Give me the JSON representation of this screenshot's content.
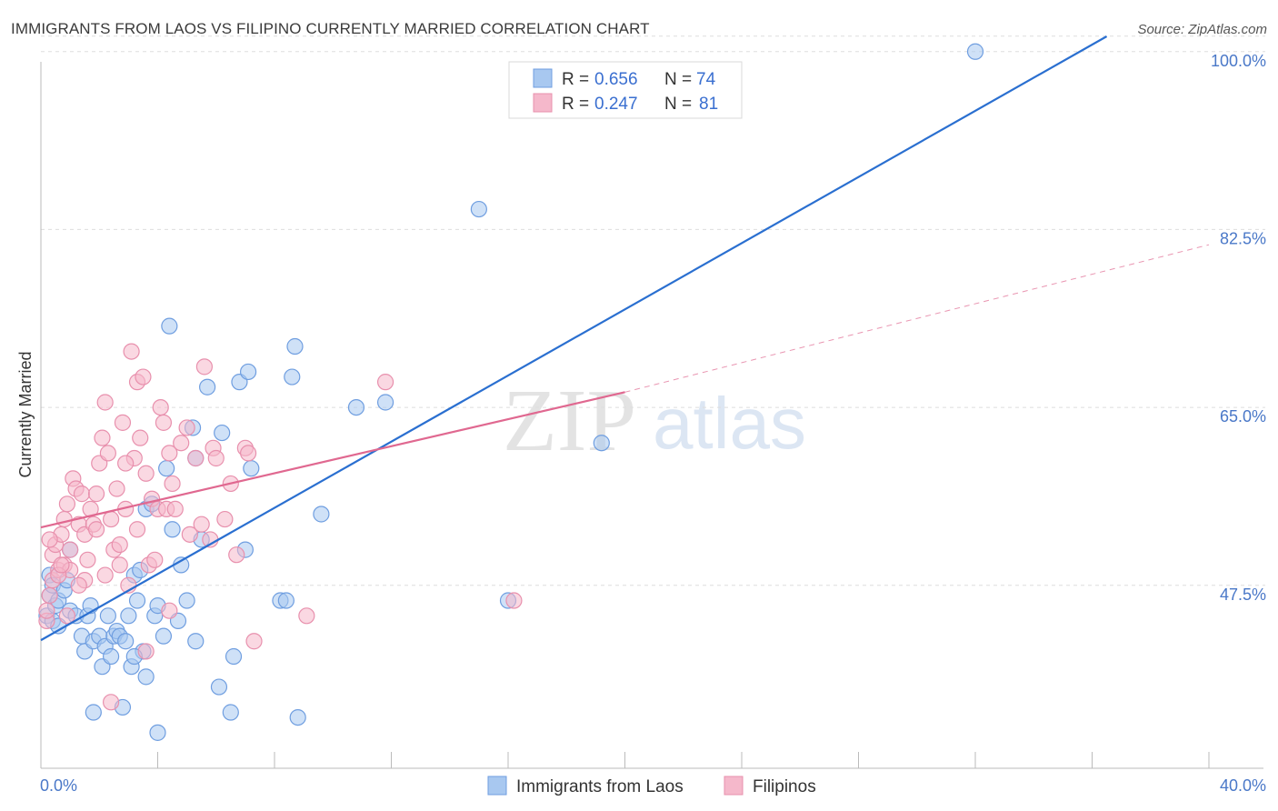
{
  "header": {
    "title": "IMMIGRANTS FROM LAOS VS FILIPINO CURRENTLY MARRIED CORRELATION CHART",
    "source": "Source: ZipAtlas.com"
  },
  "watermark": {
    "zip": "ZIP",
    "atlas": "atlas"
  },
  "colors": {
    "blue_fill": "#a8c8f0",
    "blue_stroke": "#6f9ee0",
    "blue_line": "#2a6fd0",
    "pink_fill": "#f5b8cb",
    "pink_stroke": "#e890ad",
    "pink_line": "#e06890",
    "grid": "#dddddd"
  },
  "legend": {
    "rows": [
      {
        "r_label": "R =",
        "r_value": "0.656",
        "n_label": "N =",
        "n_value": "74"
      },
      {
        "r_label": "R =",
        "r_value": "0.247",
        "n_label": "N =",
        "n_value": "81"
      }
    ]
  },
  "chart_data": {
    "type": "scatter",
    "title": "IMMIGRANTS FROM LAOS VS FILIPINO CURRENTLY MARRIED CORRELATION CHART",
    "xlabel": "",
    "ylabel": "Currently Married",
    "xlim": [
      0,
      40
    ],
    "ylim": [
      29.5,
      101.5
    ],
    "x_tick_labels": [
      "0.0%",
      "40.0%"
    ],
    "y_ticks": [
      47.5,
      65.0,
      82.5,
      100.0
    ],
    "y_tick_labels": [
      "47.5%",
      "65.0%",
      "82.5%",
      "100.0%"
    ],
    "grid": true,
    "legend_position": "top-center",
    "series": [
      {
        "name": "Immigrants from Laos",
        "R": 0.656,
        "N": 74,
        "trend": {
          "x_start": 0,
          "y_start": 42.1,
          "x_end": 36.5,
          "y_end": 101.5,
          "dashed_extension": false
        },
        "points": [
          [
            0.2,
            44.5
          ],
          [
            0.3,
            46.5
          ],
          [
            0.3,
            48.5
          ],
          [
            0.4,
            44.0
          ],
          [
            0.4,
            47.5
          ],
          [
            0.5,
            45.5
          ],
          [
            0.6,
            43.5
          ],
          [
            0.6,
            46.0
          ],
          [
            0.8,
            47.0
          ],
          [
            0.9,
            48.0
          ],
          [
            1.0,
            51.0
          ],
          [
            1.0,
            45.0
          ],
          [
            1.2,
            44.5
          ],
          [
            1.4,
            42.5
          ],
          [
            1.5,
            41.0
          ],
          [
            1.6,
            44.5
          ],
          [
            1.7,
            45.5
          ],
          [
            1.8,
            42.0
          ],
          [
            2.0,
            42.5
          ],
          [
            2.1,
            39.5
          ],
          [
            2.2,
            41.5
          ],
          [
            2.3,
            44.5
          ],
          [
            2.4,
            40.5
          ],
          [
            2.5,
            42.5
          ],
          [
            2.6,
            43.0
          ],
          [
            2.7,
            42.5
          ],
          [
            2.9,
            42.0
          ],
          [
            3.0,
            44.5
          ],
          [
            3.1,
            39.5
          ],
          [
            3.2,
            48.5
          ],
          [
            3.3,
            46.0
          ],
          [
            3.4,
            49.0
          ],
          [
            3.5,
            41.0
          ],
          [
            3.6,
            38.5
          ],
          [
            3.6,
            55.0
          ],
          [
            3.8,
            55.5
          ],
          [
            3.9,
            44.5
          ],
          [
            4.0,
            45.5
          ],
          [
            4.2,
            42.5
          ],
          [
            4.3,
            59.0
          ],
          [
            4.4,
            73.0
          ],
          [
            4.5,
            53.0
          ],
          [
            4.7,
            44.0
          ],
          [
            4.8,
            49.5
          ],
          [
            5.0,
            46.0
          ],
          [
            5.2,
            63.0
          ],
          [
            5.3,
            60.0
          ],
          [
            5.3,
            42.0
          ],
          [
            5.5,
            52.0
          ],
          [
            5.7,
            67.0
          ],
          [
            6.1,
            37.5
          ],
          [
            6.2,
            62.5
          ],
          [
            6.5,
            35.0
          ],
          [
            6.6,
            40.5
          ],
          [
            6.8,
            67.5
          ],
          [
            7.0,
            51.0
          ],
          [
            7.1,
            68.5
          ],
          [
            7.2,
            59.0
          ],
          [
            8.2,
            46.0
          ],
          [
            8.4,
            46.0
          ],
          [
            8.6,
            68.0
          ],
          [
            8.7,
            71.0
          ],
          [
            8.8,
            34.5
          ],
          [
            9.6,
            54.5
          ],
          [
            10.8,
            65.0
          ],
          [
            11.8,
            65.5
          ],
          [
            15.0,
            84.5
          ],
          [
            16.0,
            46.0
          ],
          [
            19.2,
            61.5
          ],
          [
            32.0,
            100.0
          ],
          [
            1.8,
            35.0
          ],
          [
            2.8,
            35.5
          ],
          [
            4.0,
            33.0
          ],
          [
            3.2,
            40.5
          ]
        ]
      },
      {
        "name": "Filipinos",
        "R": 0.247,
        "N": 81,
        "trend": {
          "x_start": 0,
          "y_start": 53.2,
          "x_end": 20.0,
          "y_end": 66.5,
          "dashed_extension": true,
          "dash_x_end": 40,
          "dash_y_end": 81.0
        },
        "points": [
          [
            0.2,
            44.0
          ],
          [
            0.2,
            45.0
          ],
          [
            0.3,
            46.5
          ],
          [
            0.4,
            50.5
          ],
          [
            0.4,
            48.0
          ],
          [
            0.5,
            51.5
          ],
          [
            0.6,
            49.0
          ],
          [
            0.7,
            52.5
          ],
          [
            0.8,
            49.5
          ],
          [
            0.8,
            54.0
          ],
          [
            0.9,
            55.5
          ],
          [
            1.0,
            51.0
          ],
          [
            1.1,
            58.0
          ],
          [
            1.2,
            57.0
          ],
          [
            1.3,
            53.5
          ],
          [
            1.4,
            56.5
          ],
          [
            1.5,
            52.5
          ],
          [
            1.6,
            50.0
          ],
          [
            1.7,
            55.0
          ],
          [
            1.8,
            53.5
          ],
          [
            1.9,
            56.5
          ],
          [
            2.0,
            59.5
          ],
          [
            2.1,
            62.0
          ],
          [
            2.2,
            65.5
          ],
          [
            2.3,
            60.5
          ],
          [
            2.4,
            54.0
          ],
          [
            2.5,
            51.0
          ],
          [
            2.6,
            57.0
          ],
          [
            2.7,
            49.5
          ],
          [
            2.8,
            63.5
          ],
          [
            2.9,
            55.0
          ],
          [
            3.0,
            47.5
          ],
          [
            3.1,
            70.5
          ],
          [
            3.2,
            60.0
          ],
          [
            3.3,
            67.5
          ],
          [
            3.4,
            62.0
          ],
          [
            3.5,
            68.0
          ],
          [
            3.6,
            58.5
          ],
          [
            3.7,
            49.5
          ],
          [
            3.8,
            56.0
          ],
          [
            4.0,
            55.0
          ],
          [
            4.1,
            65.0
          ],
          [
            4.2,
            63.5
          ],
          [
            4.3,
            55.0
          ],
          [
            4.4,
            60.5
          ],
          [
            4.5,
            57.5
          ],
          [
            4.6,
            55.0
          ],
          [
            4.8,
            61.5
          ],
          [
            5.0,
            63.0
          ],
          [
            5.1,
            52.5
          ],
          [
            5.3,
            60.0
          ],
          [
            5.5,
            53.5
          ],
          [
            5.6,
            69.0
          ],
          [
            5.9,
            61.0
          ],
          [
            6.0,
            60.0
          ],
          [
            6.3,
            54.0
          ],
          [
            6.5,
            57.5
          ],
          [
            6.7,
            50.5
          ],
          [
            7.0,
            61.0
          ],
          [
            7.1,
            60.5
          ],
          [
            7.3,
            42.0
          ],
          [
            9.1,
            44.5
          ],
          [
            11.8,
            67.5
          ],
          [
            16.2,
            46.0
          ],
          [
            1.0,
            49.0
          ],
          [
            1.5,
            48.0
          ],
          [
            2.2,
            48.5
          ],
          [
            2.7,
            51.5
          ],
          [
            3.3,
            53.0
          ],
          [
            0.6,
            48.5
          ],
          [
            0.9,
            44.5
          ],
          [
            1.3,
            47.5
          ],
          [
            2.4,
            36.0
          ],
          [
            3.6,
            41.0
          ],
          [
            4.4,
            45.0
          ],
          [
            0.3,
            52.0
          ],
          [
            0.7,
            49.5
          ],
          [
            1.9,
            53.0
          ],
          [
            2.9,
            59.5
          ],
          [
            3.9,
            50.0
          ],
          [
            5.8,
            52.0
          ]
        ]
      }
    ]
  },
  "bottom_legend": {
    "items": [
      "Immigrants from Laos",
      "Filipinos"
    ]
  }
}
